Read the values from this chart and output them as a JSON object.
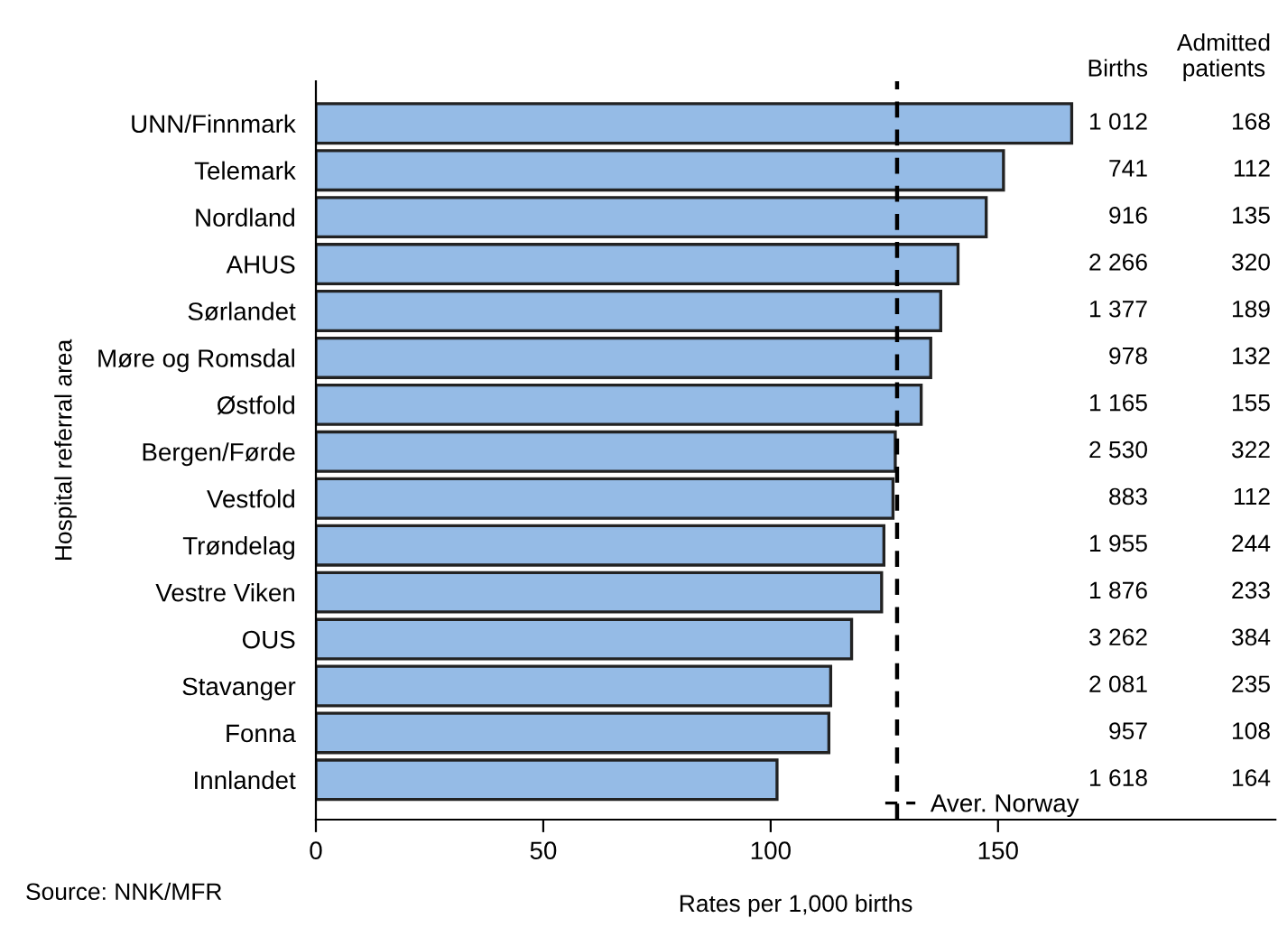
{
  "chart_data": {
    "type": "bar",
    "orientation": "horizontal",
    "categories": [
      "UNN/Finnmark",
      "Telemark",
      "Nordland",
      "AHUS",
      "Sørlandet",
      "Møre og Romsdal",
      "Østfold",
      "Bergen/Førde",
      "Vestfold",
      "Trøndelag",
      "Vestre Viken",
      "OUS",
      "Stavanger",
      "Fonna",
      "Innlandet"
    ],
    "values": [
      166.2,
      151.2,
      147.4,
      141.2,
      137.4,
      135.2,
      133.1,
      127.4,
      126.9,
      124.9,
      124.4,
      117.8,
      113.2,
      112.8,
      101.4
    ],
    "color": "#95bbe6",
    "xlim": [
      0,
      211
    ],
    "xticks": [
      0,
      50,
      100,
      150
    ],
    "xlabel": "Rates per 1,000 births",
    "ylabel": "Hospital referral area",
    "grid": false,
    "ref_lines": [
      {
        "axis": "x",
        "value": 127.8,
        "label": "Aver. Norway",
        "color": "#000000",
        "line_style": "dashed"
      }
    ],
    "annotations": [
      "Source: NNK/MFR",
      "Births",
      "Admitted\npatients",
      "1 012",
      "168",
      "741",
      "112",
      "916",
      "135",
      "2 266",
      "320",
      "1 377",
      "189",
      "978",
      "132",
      "1 165",
      "155",
      "2 530",
      "322",
      "883",
      "112",
      "1 955",
      "244",
      "1 876",
      "233",
      "3 262",
      "384",
      "2 081",
      "235",
      "957",
      "108",
      "1 618",
      "164"
    ]
  }
}
